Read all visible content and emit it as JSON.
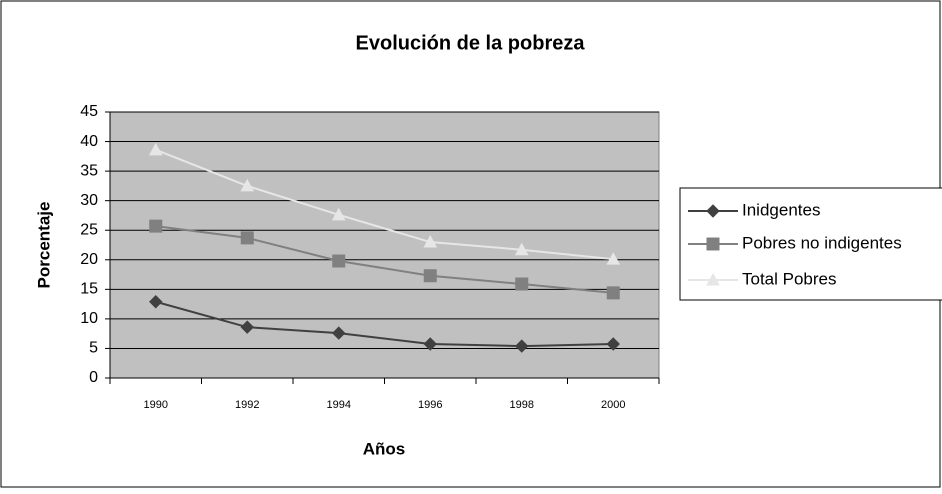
{
  "chart_data": {
    "type": "line",
    "title": "Evolución de la pobreza",
    "x_label": "Años",
    "y_label": "Porcentaje",
    "categories": [
      "1990",
      "1992",
      "1994",
      "1996",
      "1998",
      "2000"
    ],
    "series": [
      {
        "name": "Inidgentes",
        "color": "#404040",
        "marker": "diamond",
        "values": [
          12.9,
          8.6,
          7.6,
          5.75,
          5.4,
          5.75
        ]
      },
      {
        "name": "Pobres no indigentes",
        "color": "#808080",
        "marker": "square",
        "values": [
          25.7,
          23.7,
          19.8,
          17.3,
          15.9,
          14.4
        ]
      },
      {
        "name": "Total Pobres",
        "color": "#e6e6e6",
        "marker": "triangle",
        "values": [
          38.6,
          32.5,
          27.6,
          23.0,
          21.7,
          20.1
        ]
      }
    ],
    "ylim": [
      0,
      45
    ],
    "yticks": [
      0,
      5,
      10,
      15,
      20,
      25,
      30,
      35,
      40,
      45
    ],
    "grid": true,
    "plot_background": "#c0c0c0",
    "legend": "right"
  }
}
